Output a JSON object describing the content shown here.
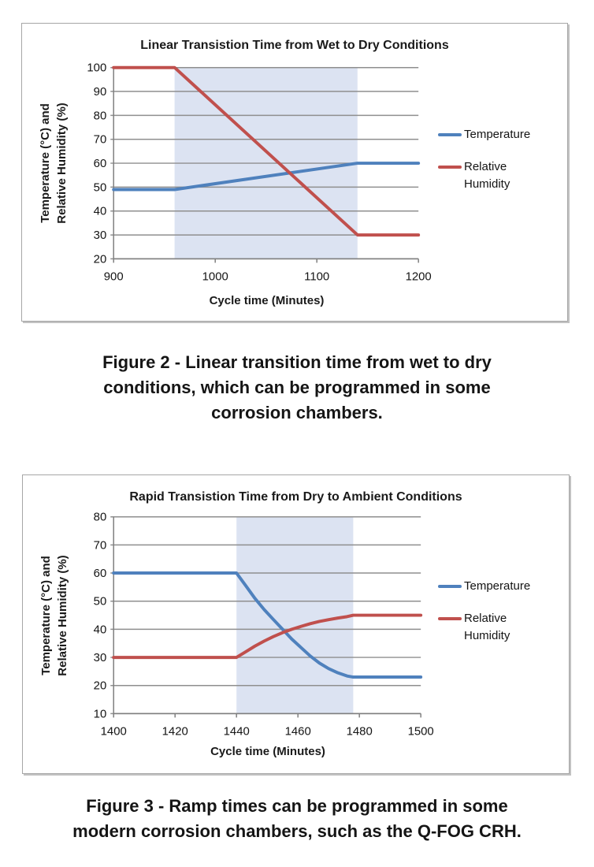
{
  "page": {
    "background": "#ffffff"
  },
  "figures": [
    {
      "caption": "Figure 2 - Linear transition time from wet to dry\nconditions, which can be programmed in some\ncorrosion chambers."
    },
    {
      "caption": "Figure 3 - Ramp times can be programmed in some\nmodern corrosion chambers, such as the Q-FOG CRH."
    }
  ],
  "chart_data": [
    {
      "type": "line",
      "title": "Linear Transistion Time from Wet to Dry Conditions",
      "xlabel": "Cycle time (Minutes)",
      "ylabel": "Temperature (°C) and\nRelative Humidity (%)",
      "xlim": [
        900,
        1200
      ],
      "ylim": [
        20,
        100
      ],
      "x_ticks": [
        900,
        1000,
        1100,
        1200
      ],
      "y_ticks": [
        20,
        30,
        40,
        50,
        60,
        70,
        80,
        90,
        100
      ],
      "grid": "horizontal",
      "grid_color": "#8f8f8f",
      "axis_color": "#7f7f7f",
      "legend_position": "right",
      "legend_labels": [
        "Temperature",
        "Relative\nHumidity"
      ],
      "highlight_band": {
        "x0": 960,
        "x1": 1140,
        "color": "#dce3f2"
      },
      "series": [
        {
          "name": "Temperature",
          "color": "#4f81bd",
          "points": [
            [
              900,
              49
            ],
            [
              960,
              49
            ],
            [
              1140,
              60
            ],
            [
              1200,
              60
            ]
          ]
        },
        {
          "name": "Relative Humidity",
          "color": "#c0504d",
          "points": [
            [
              900,
              100
            ],
            [
              960,
              100
            ],
            [
              1140,
              30
            ],
            [
              1200,
              30
            ]
          ]
        }
      ]
    },
    {
      "type": "line",
      "title": "Rapid Transistion Time from Dry to Ambient Conditions",
      "xlabel": "Cycle time (Minutes)",
      "ylabel": "Temperature (°C) and\nRelative Humidity (%)",
      "xlim": [
        1400,
        1500
      ],
      "ylim": [
        10,
        80
      ],
      "x_ticks": [
        1400,
        1420,
        1440,
        1460,
        1480,
        1500
      ],
      "y_ticks": [
        10,
        20,
        30,
        40,
        50,
        60,
        70,
        80
      ],
      "grid": "horizontal",
      "grid_color": "#8f8f8f",
      "axis_color": "#7f7f7f",
      "legend_position": "right",
      "legend_labels": [
        "Temperature",
        "Relative\nHumidity"
      ],
      "highlight_band": {
        "x0": 1440,
        "x1": 1478,
        "color": "#dce3f2"
      },
      "series": [
        {
          "name": "Temperature",
          "color": "#4f81bd",
          "points": [
            [
              1400,
              60
            ],
            [
              1440,
              60
            ],
            [
              1443,
              55.5
            ],
            [
              1446,
              51
            ],
            [
              1449,
              47
            ],
            [
              1452,
              43.5
            ],
            [
              1455,
              40
            ],
            [
              1458,
              36.5
            ],
            [
              1461,
              33.5
            ],
            [
              1464,
              30.5
            ],
            [
              1467,
              28
            ],
            [
              1470,
              26
            ],
            [
              1473,
              24.5
            ],
            [
              1476,
              23.4
            ],
            [
              1478,
              23
            ],
            [
              1500,
              23
            ]
          ]
        },
        {
          "name": "Relative Humidity",
          "color": "#c0504d",
          "points": [
            [
              1400,
              30
            ],
            [
              1440,
              30
            ],
            [
              1443,
              32
            ],
            [
              1446,
              34
            ],
            [
              1449,
              35.8
            ],
            [
              1452,
              37.4
            ],
            [
              1455,
              38.8
            ],
            [
              1458,
              40
            ],
            [
              1461,
              41
            ],
            [
              1464,
              42
            ],
            [
              1467,
              42.8
            ],
            [
              1470,
              43.4
            ],
            [
              1473,
              44
            ],
            [
              1476,
              44.5
            ],
            [
              1478,
              45
            ],
            [
              1500,
              45
            ]
          ]
        }
      ]
    }
  ]
}
